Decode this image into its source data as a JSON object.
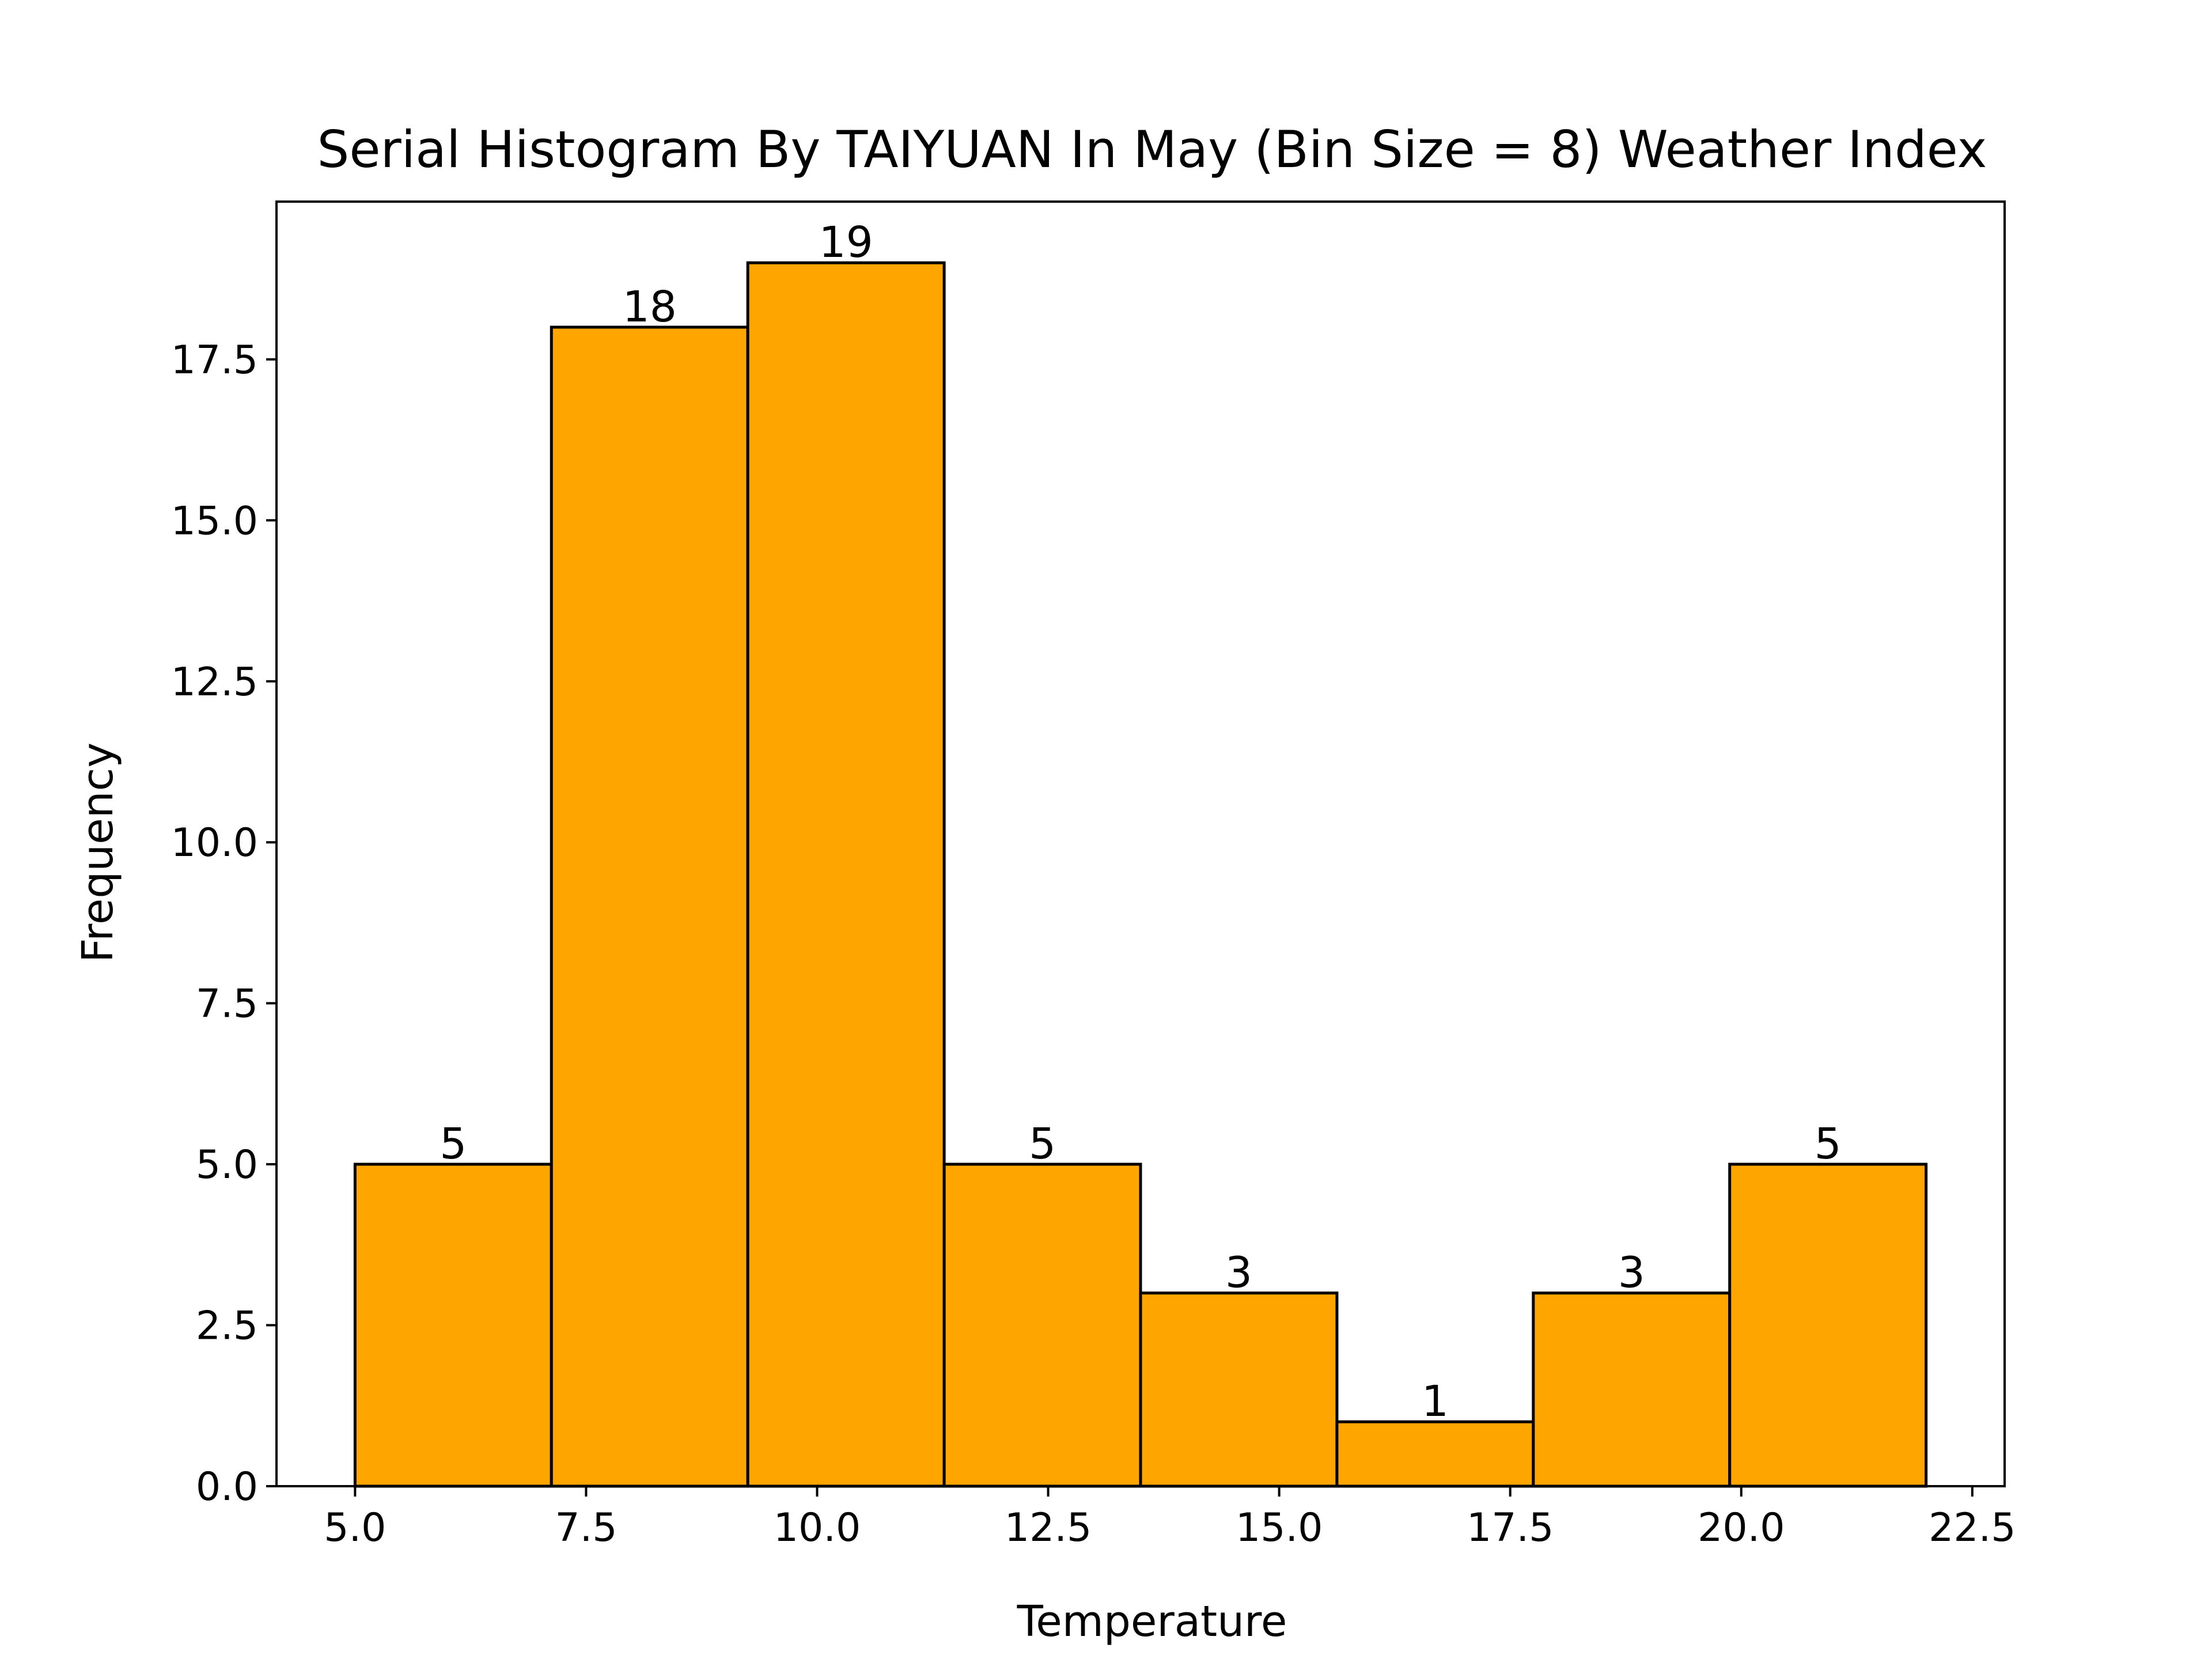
{
  "chart_data": {
    "type": "bar",
    "title": "Serial Histogram By TAIYUAN In May (Bin Size = 8) Weather Index",
    "xlabel": "Temperature",
    "ylabel": "Frequency",
    "bin_edges": [
      5.0,
      7.125,
      9.25,
      11.375,
      13.5,
      15.625,
      17.75,
      19.875,
      22.0
    ],
    "values": [
      5,
      18,
      19,
      5,
      3,
      1,
      3,
      5
    ],
    "value_labels": [
      "5",
      "18",
      "19",
      "5",
      "3",
      "1",
      "3",
      "5"
    ],
    "xlim": [
      4.15,
      22.85
    ],
    "ylim": [
      0,
      19.95
    ],
    "x_ticks": [
      5.0,
      7.5,
      10.0,
      12.5,
      15.0,
      17.5,
      20.0,
      22.5
    ],
    "x_tick_labels": [
      "5.0",
      "7.5",
      "10.0",
      "12.5",
      "15.0",
      "17.5",
      "20.0",
      "22.5"
    ],
    "y_ticks": [
      0.0,
      2.5,
      5.0,
      7.5,
      10.0,
      12.5,
      15.0,
      17.5
    ],
    "y_tick_labels": [
      "0.0",
      "2.5",
      "5.0",
      "7.5",
      "10.0",
      "12.5",
      "15.0",
      "17.5"
    ],
    "grid": false,
    "bar_color": "#FFA500",
    "edge_color": "#000000"
  }
}
